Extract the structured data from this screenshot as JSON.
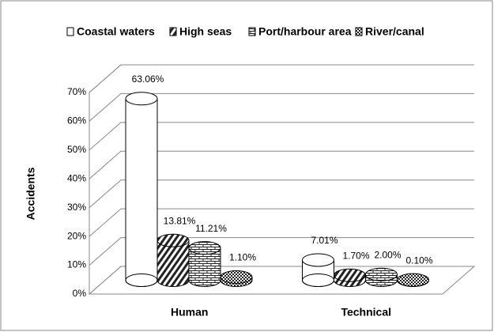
{
  "chart_data": {
    "type": "bar3d-cylinder",
    "y_label": "Accidents",
    "categories": [
      "Human",
      "Technical"
    ],
    "series": [
      {
        "name": "Coastal waters",
        "pattern": "none",
        "color": "#000000",
        "values": [
          63.06,
          7.01
        ],
        "value_labels": [
          "63.06%",
          "7.01%"
        ]
      },
      {
        "name": "High seas",
        "pattern": "diagonal",
        "color": "#000000",
        "values": [
          13.81,
          1.7
        ],
        "value_labels": [
          "13.81%",
          "1.70%"
        ]
      },
      {
        "name": "Port/harbour area",
        "pattern": "brick",
        "color": "#000000",
        "values": [
          11.21,
          2.0
        ],
        "value_labels": [
          "11.21%",
          "2.00%"
        ]
      },
      {
        "name": "River/canal",
        "pattern": "cross",
        "color": "#000000",
        "values": [
          1.1,
          0.1
        ],
        "value_labels": [
          "1.10%",
          "0.10%"
        ]
      }
    ],
    "ylim": [
      0,
      70
    ],
    "yticks": [
      {
        "value": 0,
        "label": "0%"
      },
      {
        "value": 10,
        "label": "10%"
      },
      {
        "value": 20,
        "label": "20%"
      },
      {
        "value": 30,
        "label": "30%"
      },
      {
        "value": 40,
        "label": "40%"
      },
      {
        "value": 50,
        "label": "50%"
      },
      {
        "value": 60,
        "label": "60%"
      },
      {
        "value": 70,
        "label": "70%"
      }
    ],
    "grid": true,
    "legend": "top"
  }
}
